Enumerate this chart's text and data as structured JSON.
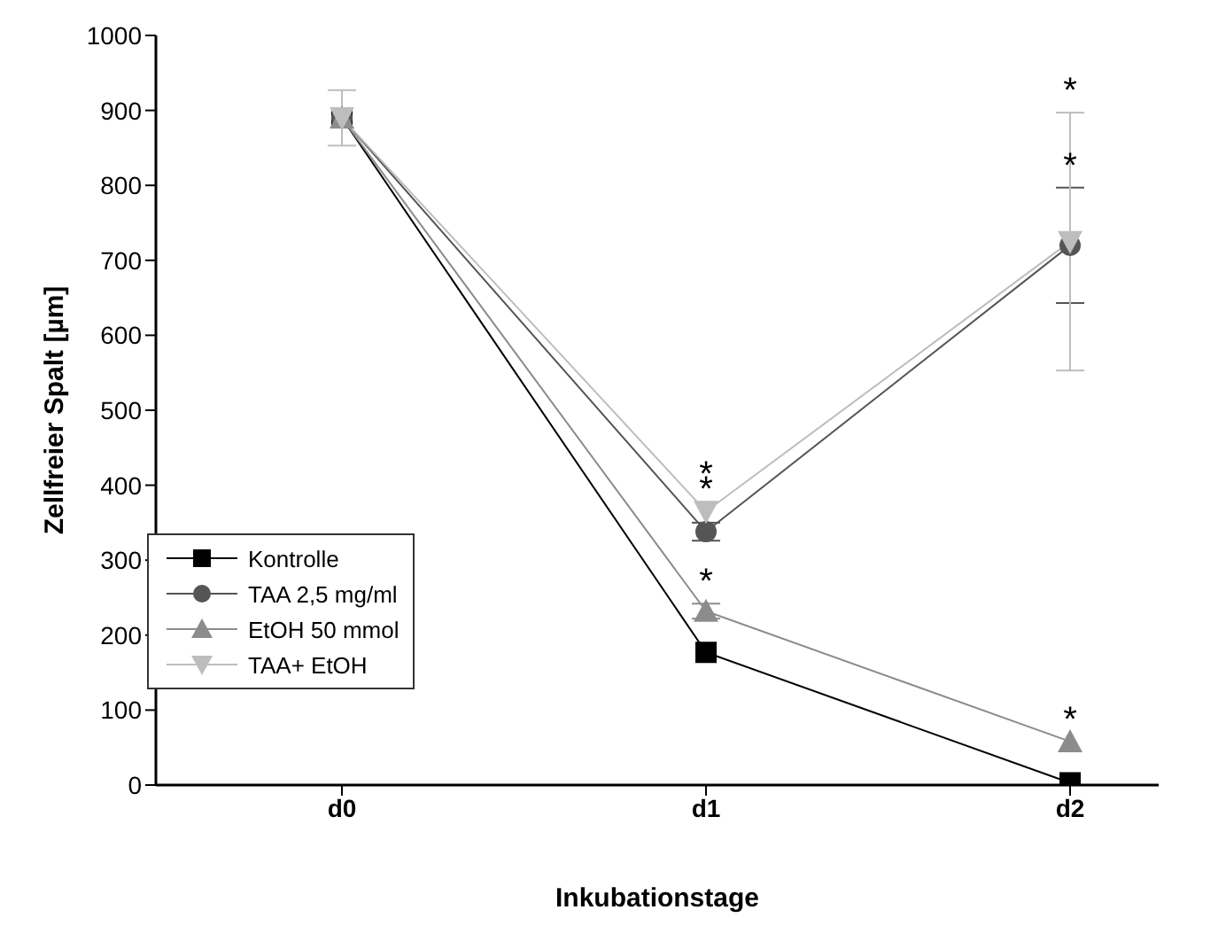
{
  "chart_data": {
    "type": "line",
    "xlabel": "Inkubationstage",
    "ylabel": "Zellfreier Spalt [µm]",
    "categories": [
      "d0",
      "d1",
      "d2"
    ],
    "ylim": [
      0,
      1000
    ],
    "yticks": [
      0,
      100,
      200,
      300,
      400,
      500,
      600,
      700,
      800,
      900,
      1000
    ],
    "grid": false,
    "legend": "bottom left",
    "series": [
      {
        "name": "Kontrolle",
        "color": "#000000",
        "marker": "square",
        "values": [
          890,
          177,
          3
        ]
      },
      {
        "name": "TAA 2,5 mg/ml",
        "color": "#555555",
        "marker": "circle",
        "values": [
          890,
          338,
          720
        ],
        "errors": [
          null,
          12,
          77
        ]
      },
      {
        "name": "EtOH 50 mmol",
        "color": "#8c8c8c",
        "marker": "triangle",
        "values": [
          890,
          232,
          58
        ],
        "errors": [
          null,
          10,
          null
        ]
      },
      {
        "name": "TAA+ EtOH",
        "color": "#bdbdbd",
        "marker": "triangle-down",
        "values": [
          890,
          365,
          725
        ],
        "errors": [
          37,
          null,
          172
        ]
      }
    ],
    "annotations": [
      {
        "text": "*",
        "x": "d1",
        "y": 365
      },
      {
        "text": "*",
        "x": "d1",
        "y": 350
      },
      {
        "text": "*",
        "x": "d1",
        "y": 242
      },
      {
        "text": "*",
        "x": "d2",
        "y": 897
      },
      {
        "text": "*",
        "x": "d2",
        "y": 797
      },
      {
        "text": "*",
        "x": "d2",
        "y": 58
      }
    ]
  }
}
